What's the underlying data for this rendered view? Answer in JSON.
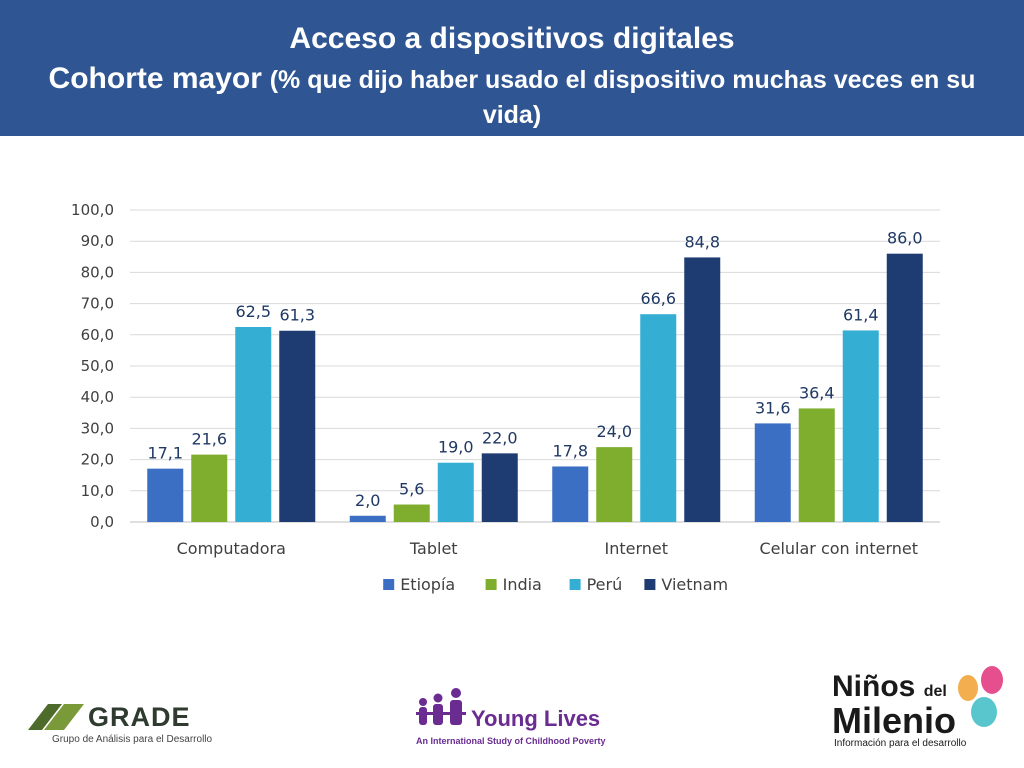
{
  "header": {
    "title_line1": "Acceso a dispositivos digitales",
    "title_line2_big": "Cohorte mayor",
    "title_line2_rest": "(% que dijo haber usado el dispositivo muchas veces en su vida)"
  },
  "chart_data": {
    "type": "bar",
    "categories": [
      "Computadora",
      "Tablet",
      "Internet",
      "Celular con internet"
    ],
    "series": [
      {
        "name": "Etiopía",
        "values": [
          17.1,
          2.0,
          17.8,
          31.6
        ],
        "labels": [
          "17,1",
          "2,0",
          "17,8",
          "31,6"
        ],
        "color": "#3a6fc4"
      },
      {
        "name": "India",
        "values": [
          21.6,
          5.6,
          24.0,
          36.4
        ],
        "labels": [
          "21,6",
          "5,6",
          "24,0",
          "36,4"
        ],
        "color": "#7fae2e"
      },
      {
        "name": "Perú",
        "values": [
          62.5,
          19.0,
          66.6,
          61.4
        ],
        "labels": [
          "62,5",
          "19,0",
          "66,6",
          "61,4"
        ],
        "color": "#34aed3"
      },
      {
        "name": "Vietnam",
        "values": [
          61.3,
          22.0,
          84.8,
          86.0
        ],
        "labels": [
          "61,3",
          "22,0",
          "84,8",
          "86,0"
        ],
        "color": "#1e3c72"
      }
    ],
    "ylim": [
      0,
      100
    ],
    "y_ticks": [
      "0,0",
      "10,0",
      "20,0",
      "30,0",
      "40,0",
      "50,0",
      "60,0",
      "70,0",
      "80,0",
      "90,0",
      "100,0"
    ],
    "grid": true,
    "legend": "bottom"
  },
  "logos": {
    "grade_name": "GRADE",
    "grade_sub": "Grupo de Análisis para el Desarrollo",
    "young_lives_name": "Young Lives",
    "young_lives_sub": "An International Study of Childhood Poverty",
    "ndm_line1": "Niños",
    "ndm_del": "del",
    "ndm_line2": "Milenio",
    "ndm_sub": "Información para el desarrollo"
  }
}
